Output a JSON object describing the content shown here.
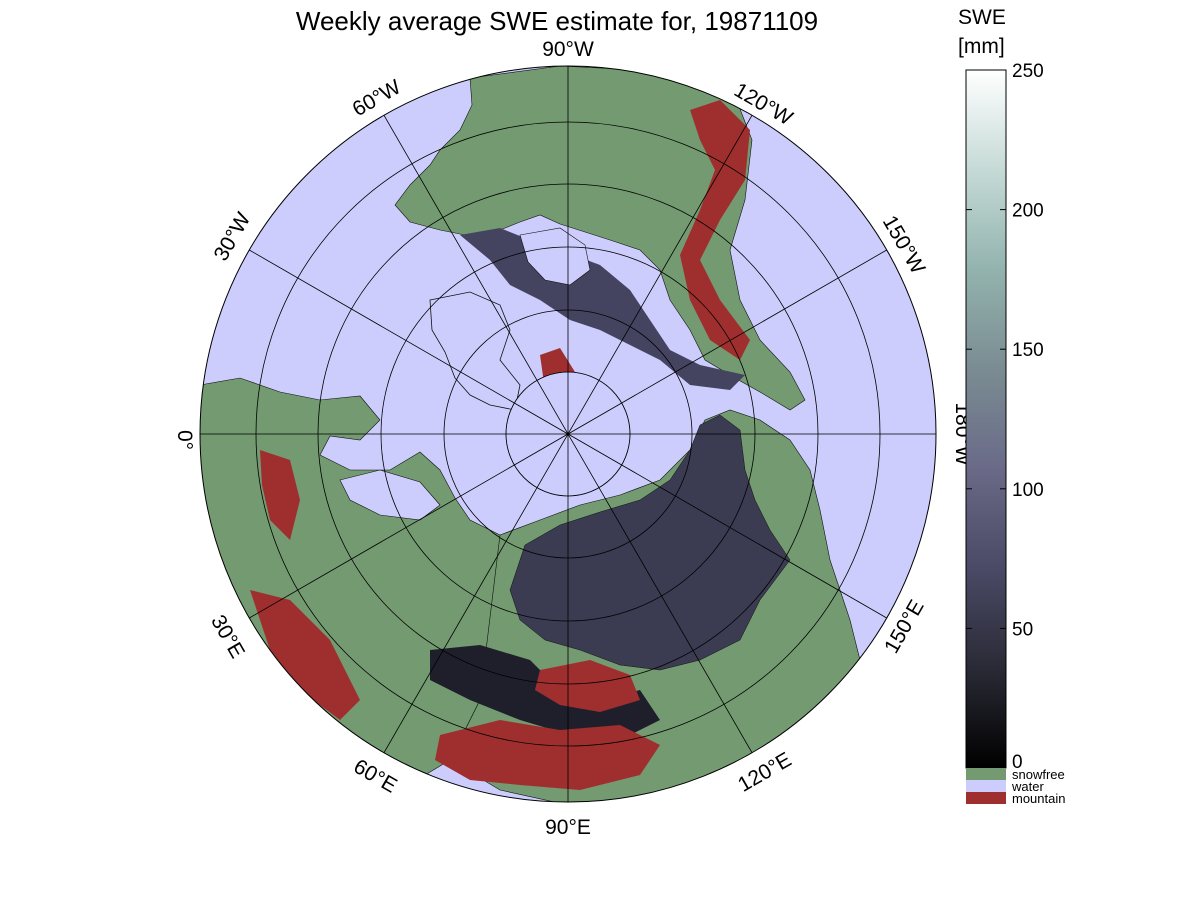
{
  "title": "Weekly average SWE estimate for, 19871109",
  "colorbar": {
    "title_line1": "SWE",
    "title_line2": "[mm]",
    "min": 0,
    "max": 250,
    "ticks": [
      "0",
      "50",
      "100",
      "150",
      "200",
      "250"
    ],
    "gradient": [
      "#000000",
      "#2a2a36",
      "#4a4a66",
      "#6a6a88",
      "#7a8c92",
      "#93b3ae",
      "#c5dad6",
      "#ffffff"
    ],
    "categories": [
      {
        "label": "snowfree",
        "color": "#739a70"
      },
      {
        "label": "water",
        "color": "#cccdfc"
      },
      {
        "label": "mountain",
        "color": "#9f2f2f"
      }
    ]
  },
  "map": {
    "projection": "north polar stereographic",
    "ocean_color": "#cccdfc",
    "land_color": "#739a70",
    "snow_color": "#3b3b52",
    "mountain_color": "#9f2f2f",
    "longitude_labels": [
      {
        "text": "90°W",
        "name": "lon-label-90w"
      },
      {
        "text": "120°W",
        "name": "lon-label-120w"
      },
      {
        "text": "150°W",
        "name": "lon-label-150w"
      },
      {
        "text": "180°W",
        "name": "lon-label-180w"
      },
      {
        "text": "150°E",
        "name": "lon-label-150e"
      },
      {
        "text": "120°E",
        "name": "lon-label-120e"
      },
      {
        "text": "90°E",
        "name": "lon-label-90e"
      },
      {
        "text": "60°E",
        "name": "lon-label-60e"
      },
      {
        "text": "30°E",
        "name": "lon-label-30e"
      },
      {
        "text": "0°",
        "name": "lon-label-0"
      },
      {
        "text": "30°W",
        "name": "lon-label-30w"
      },
      {
        "text": "60°W",
        "name": "lon-label-60w"
      }
    ]
  }
}
